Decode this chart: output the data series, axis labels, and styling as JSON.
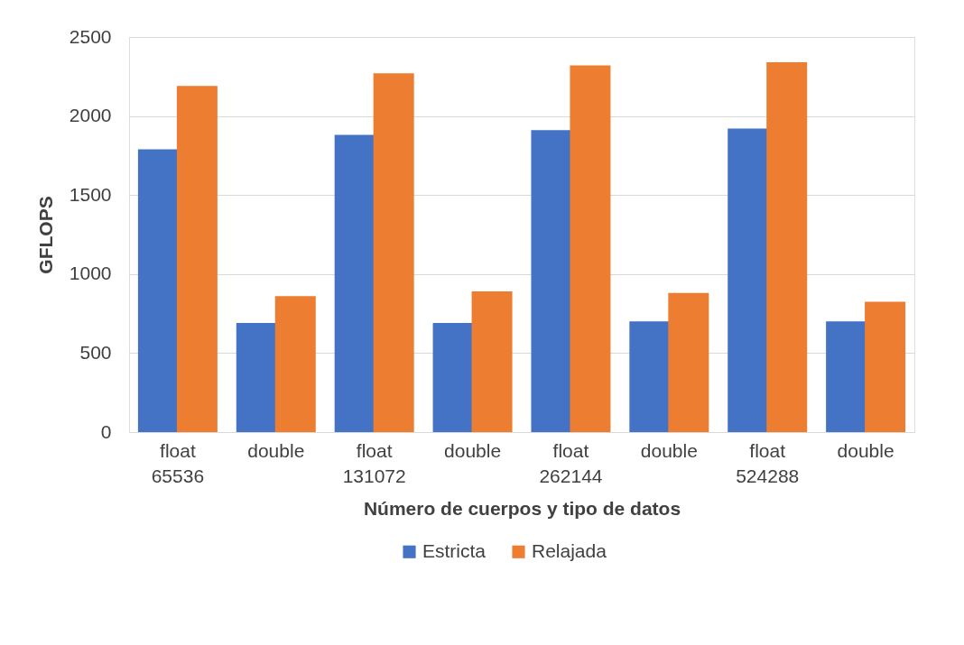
{
  "chart_data": {
    "type": "bar",
    "xlabel": "Número de cuerpos y tipo de datos",
    "ylabel": "GFLOPS",
    "categories": [
      "float 65536",
      "double",
      "float 131072",
      "double",
      "float 262144",
      "double",
      "float 524288",
      "double"
    ],
    "series": [
      {
        "name": "Estricta",
        "color": "#4472c4",
        "values": [
          1790,
          690,
          1880,
          690,
          1910,
          700,
          1920,
          700
        ]
      },
      {
        "name": "Relajada",
        "color": "#ed7d31",
        "values": [
          2190,
          860,
          2270,
          890,
          2320,
          880,
          2340,
          825
        ]
      }
    ],
    "ylim": [
      0,
      2500
    ],
    "yticks": [
      0,
      500,
      1000,
      1500,
      2000,
      2500
    ],
    "grid": "y",
    "legend": "bottom"
  }
}
